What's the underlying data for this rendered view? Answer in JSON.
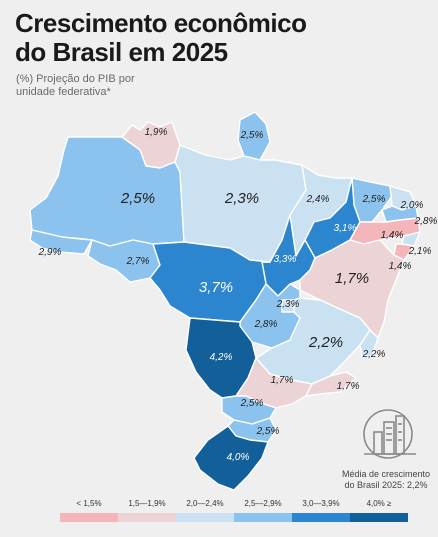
{
  "title": "Crescimento econômico do Brasil em 2025",
  "subtitle": "(%) Projeção do PIB por unidade federativa*",
  "colors": {
    "bin1": "#f4b6bb",
    "bin2": "#ecd3d6",
    "bin3": "#c9e1f1",
    "bin4": "#8cc3ee",
    "bin5": "#2c86cf",
    "bin6": "#125f9a",
    "background": "#efefef"
  },
  "states": [
    {
      "name": "Roraima",
      "value": "1,9%",
      "bin": "1,5—1,9%"
    },
    {
      "name": "Amapá",
      "value": "2,5%",
      "bin": "2,5—2,9%"
    },
    {
      "name": "Amazonas",
      "value": "2,5%",
      "bin": "2,5—2,9%"
    },
    {
      "name": "Pará",
      "value": "2,3%",
      "bin": "2,0—2,4%"
    },
    {
      "name": "Maranhão",
      "value": "2,4%",
      "bin": "2,0—2,4%"
    },
    {
      "name": "Ceará",
      "value": "2,5%",
      "bin": "2,5—2,9%"
    },
    {
      "name": "Rio Grande do Norte",
      "value": "2,0%",
      "bin": "2,0—2,4%"
    },
    {
      "name": "Paraíba",
      "value": "2,8%",
      "bin": "2,5—2,9%"
    },
    {
      "name": "Piauí",
      "value": "3,1%",
      "bin": "3,0—3,9%"
    },
    {
      "name": "Pernambuco",
      "value": "1,4%",
      "bin": "< 1,5%"
    },
    {
      "name": "Alagoas",
      "value": "2,1%",
      "bin": "2,0—2,4%"
    },
    {
      "name": "Sergipe",
      "value": "1,4%",
      "bin": "< 1,5%"
    },
    {
      "name": "Acre",
      "value": "2,9%",
      "bin": "2,5—2,9%"
    },
    {
      "name": "Rondônia",
      "value": "2,7%",
      "bin": "2,5—2,9%"
    },
    {
      "name": "Tocantins",
      "value": "3,3%",
      "bin": "3,0—3,9%"
    },
    {
      "name": "Mato Grosso",
      "value": "3,7%",
      "bin": "3,0—3,9%"
    },
    {
      "name": "Bahia",
      "value": "1,7%",
      "bin": "1,5—1,9%"
    },
    {
      "name": "Distrito Federal",
      "value": "2,3%",
      "bin": "2,0—2,4%"
    },
    {
      "name": "Goiás",
      "value": "2,8%",
      "bin": "2,5—2,9%"
    },
    {
      "name": "Minas Gerais",
      "value": "2,2%",
      "bin": "2,0—2,4%"
    },
    {
      "name": "Espírito Santo",
      "value": "2,2%",
      "bin": "2,0—2,4%"
    },
    {
      "name": "Mato Grosso do Sul",
      "value": "4,2%",
      "bin": "4,0% ≥"
    },
    {
      "name": "São Paulo",
      "value": "1,7%",
      "bin": "1,5—1,9%"
    },
    {
      "name": "Rio de Janeiro",
      "value": "1,7%",
      "bin": "1,5—1,9%"
    },
    {
      "name": "Paraná",
      "value": "2,5%",
      "bin": "2,5—2,9%"
    },
    {
      "name": "Santa Catarina",
      "value": "2,5%",
      "bin": "2,5—2,9%"
    },
    {
      "name": "Rio Grande do Sul",
      "value": "4,0%",
      "bin": "4,0% ≥"
    }
  ],
  "average": {
    "text": "Média de crescimento do Brasil 2025: 2,2%",
    "icon": "city-buildings-icon"
  },
  "legend": [
    {
      "label": "< 1,5%",
      "color": "#f4b6bb"
    },
    {
      "label": "1,5—1,9%",
      "color": "#ecd3d6"
    },
    {
      "label": "2,0—2,4%",
      "color": "#c9e1f1"
    },
    {
      "label": "2,5—2,9%",
      "color": "#8cc3ee"
    },
    {
      "label": "3,0—3,9%",
      "color": "#2c86cf"
    },
    {
      "label": "4,0% ≥",
      "color": "#125f9a"
    }
  ]
}
